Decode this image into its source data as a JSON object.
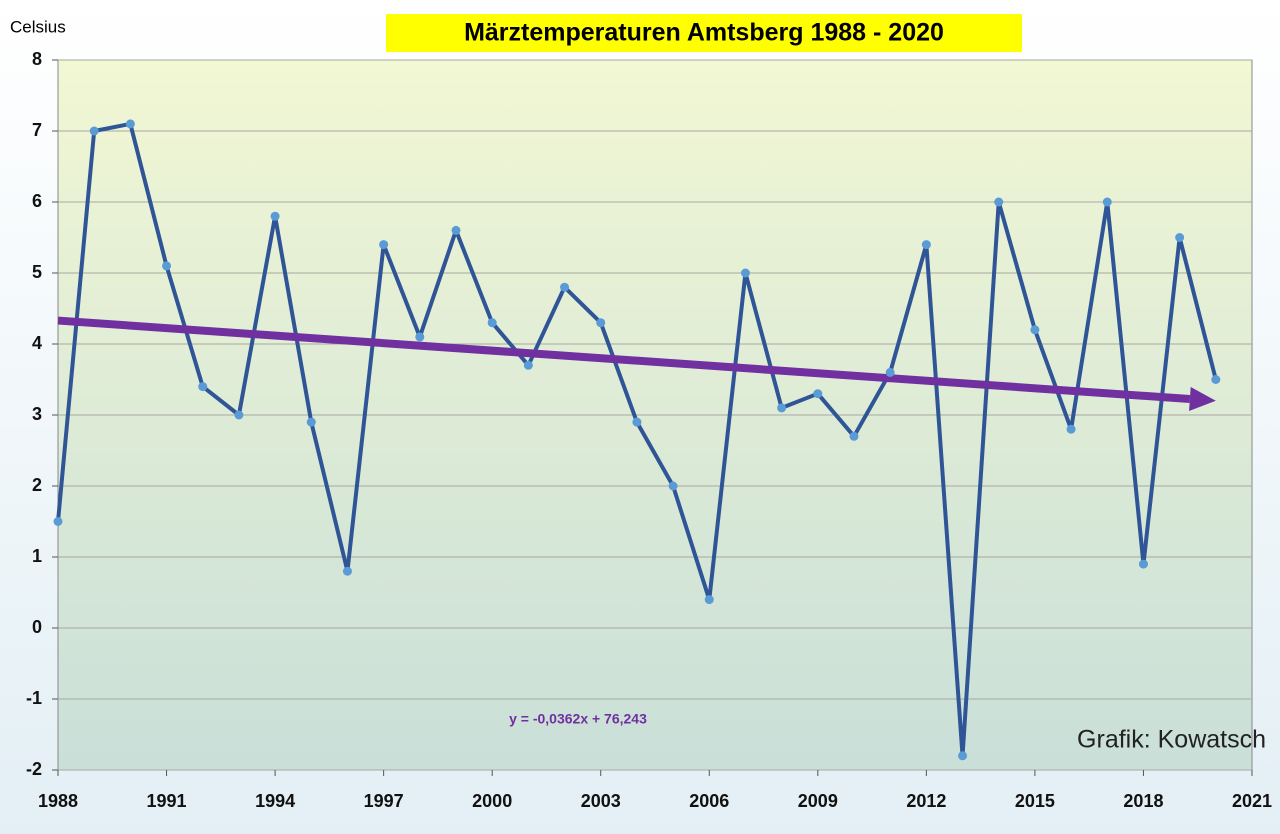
{
  "chart_data": {
    "type": "line",
    "title": "Märztemperaturen Amtsberg 1988 - 2020",
    "y_label": "Celsius",
    "annotation": "Grafik: Kowatsch",
    "x": [
      1988,
      1989,
      1990,
      1991,
      1992,
      1993,
      1994,
      1995,
      1996,
      1997,
      1998,
      1999,
      2000,
      2001,
      2002,
      2003,
      2004,
      2005,
      2006,
      2007,
      2008,
      2009,
      2010,
      2011,
      2012,
      2013,
      2014,
      2015,
      2016,
      2017,
      2018,
      2019,
      2020
    ],
    "values": [
      1.5,
      7.0,
      7.1,
      5.1,
      3.4,
      3.0,
      5.8,
      2.9,
      0.8,
      5.4,
      4.1,
      5.6,
      4.3,
      3.7,
      4.8,
      4.3,
      2.9,
      2.0,
      0.4,
      5.0,
      3.1,
      3.3,
      2.7,
      3.6,
      5.4,
      -1.8,
      6.0,
      4.2,
      2.8,
      6.0,
      0.9,
      5.5,
      3.5
    ],
    "color": "#2f5597",
    "marker_color": "#5b9bd5",
    "trend": {
      "label": "y = -0,0362x + 76,243",
      "x": [
        1988,
        2020
      ],
      "values": [
        4.33,
        3.2
      ],
      "color": "#7030a0"
    },
    "xlim": [
      1988,
      2021
    ],
    "xticks": [
      1988,
      1991,
      1994,
      1997,
      2000,
      2003,
      2006,
      2009,
      2012,
      2015,
      2018,
      2021
    ],
    "ylim": [
      -2,
      8
    ],
    "yticks": [
      -2,
      -1,
      0,
      1,
      2,
      3,
      4,
      5,
      6,
      7,
      8
    ],
    "grid": true
  }
}
